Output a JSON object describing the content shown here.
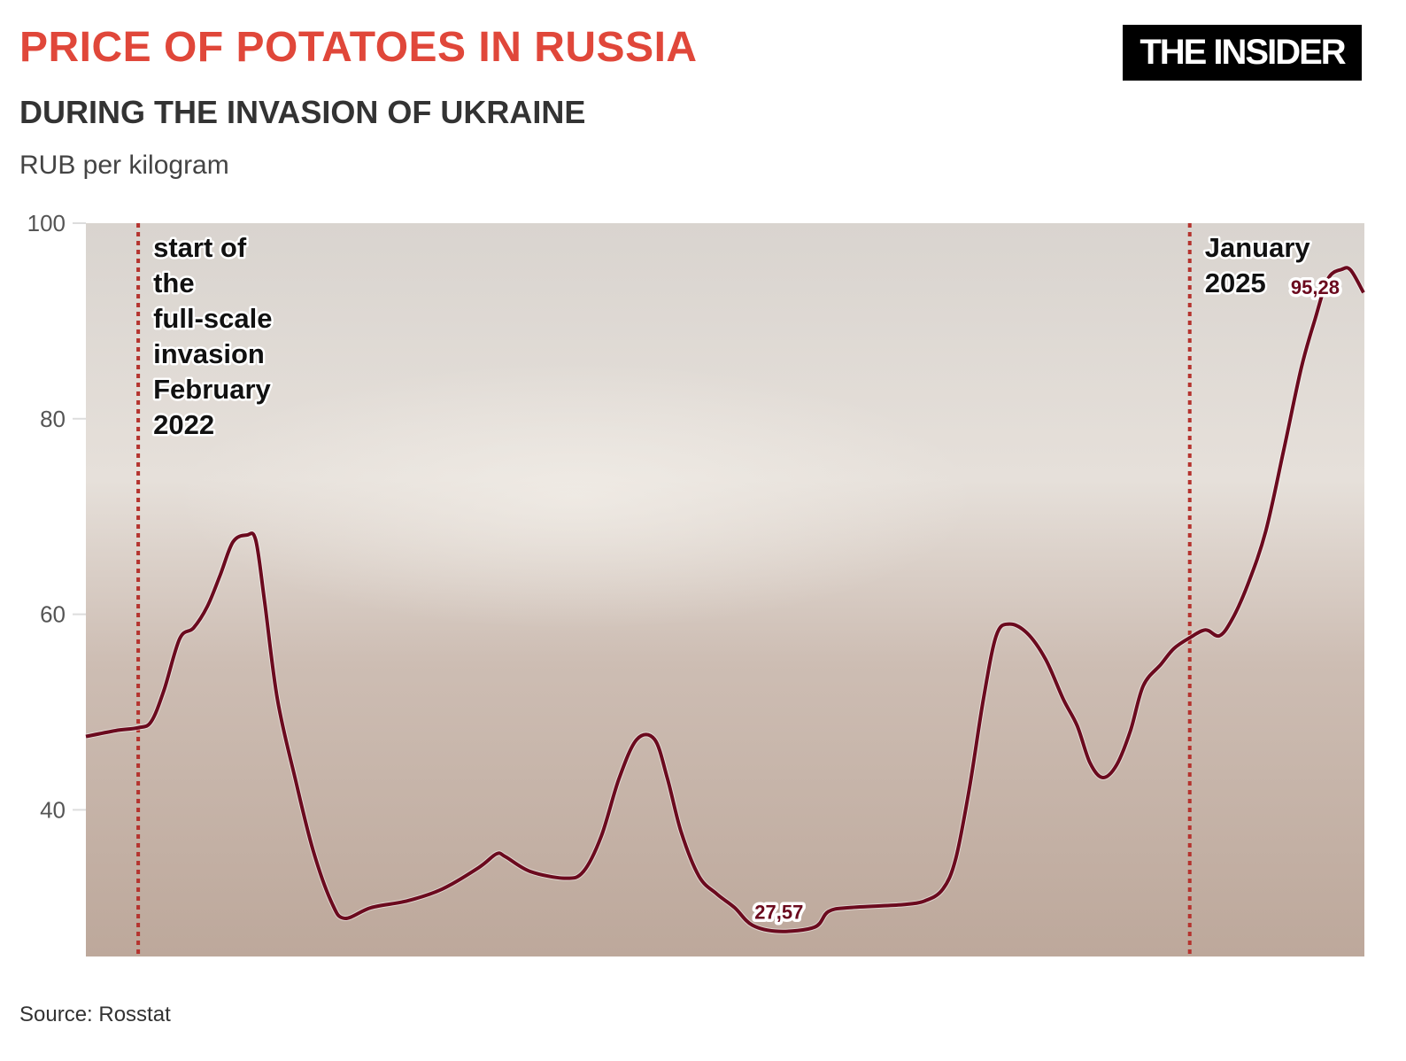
{
  "header": {
    "title": "PRICE OF POTATOES IN RUSSIA",
    "subtitle": "DURING THE INVASION OF UKRAINE",
    "unit": "RUB per kilogram",
    "logo": "THE INSIDER"
  },
  "footer": {
    "source": "Source: Rosstat"
  },
  "chart_data": {
    "type": "line",
    "title": "PRICE OF POTATOES IN RUSSIA",
    "subtitle": "DURING THE INVASION OF UKRAINE",
    "ylabel": "RUB per kilogram",
    "ylim": [
      25,
      100
    ],
    "yticks": [
      40,
      60,
      80,
      100
    ],
    "xlim": [
      "2021-12-10",
      "2025-06-26"
    ],
    "grid": false,
    "background": "photo of potatoes at a market stall (sepia, faded)",
    "line_color": "#6b0a1e",
    "marker_color": "#b5332e",
    "x": [
      "2021-12-10",
      "2022-01-09",
      "2022-02-01",
      "2022-02-14",
      "2022-02-27",
      "2022-03-15",
      "2022-03-29",
      "2022-04-12",
      "2022-04-25",
      "2022-05-08",
      "2022-05-22",
      "2022-05-31",
      "2022-06-09",
      "2022-06-22",
      "2022-07-10",
      "2022-07-28",
      "2022-08-16",
      "2022-08-29",
      "2022-09-25",
      "2022-11-01",
      "2022-12-06",
      "2023-01-12",
      "2023-01-30",
      "2023-02-08",
      "2023-03-05",
      "2023-04-10",
      "2023-04-28",
      "2023-05-16",
      "2023-06-03",
      "2023-06-21",
      "2023-07-09",
      "2023-07-22",
      "2023-08-05",
      "2023-08-23",
      "2023-09-10",
      "2023-09-28",
      "2023-10-16",
      "2023-11-12",
      "2023-12-18",
      "2024-01-01",
      "2024-01-23",
      "2024-03-16",
      "2024-04-08",
      "2024-04-26",
      "2024-05-09",
      "2024-05-23",
      "2024-06-06",
      "2024-06-19",
      "2024-07-02",
      "2024-07-20",
      "2024-08-08",
      "2024-08-26",
      "2024-09-09",
      "2024-09-22",
      "2024-10-05",
      "2024-10-19",
      "2024-11-02",
      "2024-11-15",
      "2024-12-03",
      "2024-12-16",
      "2025-01-01",
      "2025-01-17",
      "2025-01-31",
      "2025-02-13",
      "2025-03-01",
      "2025-03-19",
      "2025-04-06",
      "2025-04-24",
      "2025-05-08",
      "2025-05-21",
      "2025-06-04",
      "2025-06-13",
      "2025-06-26"
    ],
    "y": [
      47.5,
      48.1,
      48.4,
      49.0,
      52.2,
      57.5,
      58.6,
      60.8,
      64.0,
      67.4,
      68.1,
      67.6,
      61.3,
      51.3,
      43.2,
      35.9,
      30.5,
      28.9,
      30.0,
      30.7,
      31.9,
      34.1,
      35.5,
      35.2,
      33.7,
      33.0,
      33.7,
      37.3,
      43.2,
      47.2,
      47.2,
      43.2,
      37.7,
      33.2,
      31.4,
      30.0,
      28.2,
      27.57,
      28.0,
      29.6,
      30.0,
      30.3,
      30.7,
      31.9,
      35.0,
      42.3,
      51.3,
      57.8,
      59.0,
      58.1,
      55.4,
      51.3,
      48.6,
      44.8,
      43.3,
      44.6,
      48.1,
      52.7,
      54.9,
      56.5,
      57.6,
      58.4,
      57.8,
      59.5,
      63.1,
      68.5,
      76.7,
      85.2,
      90.2,
      94.3,
      95.28,
      95.2,
      92.9
    ],
    "annotations": [
      {
        "x": "2022-02-01",
        "lines": [
          "start of",
          "the",
          "full-scale",
          "invasion",
          "February",
          "2022"
        ]
      },
      {
        "x": "2025-01-01",
        "lines": [
          "January",
          "2025"
        ]
      }
    ],
    "data_labels": [
      {
        "x": "2023-11-12",
        "y": 27.57,
        "text": "27,57"
      },
      {
        "x": "2025-06-04",
        "y": 95.28,
        "text": "95,28"
      }
    ]
  }
}
